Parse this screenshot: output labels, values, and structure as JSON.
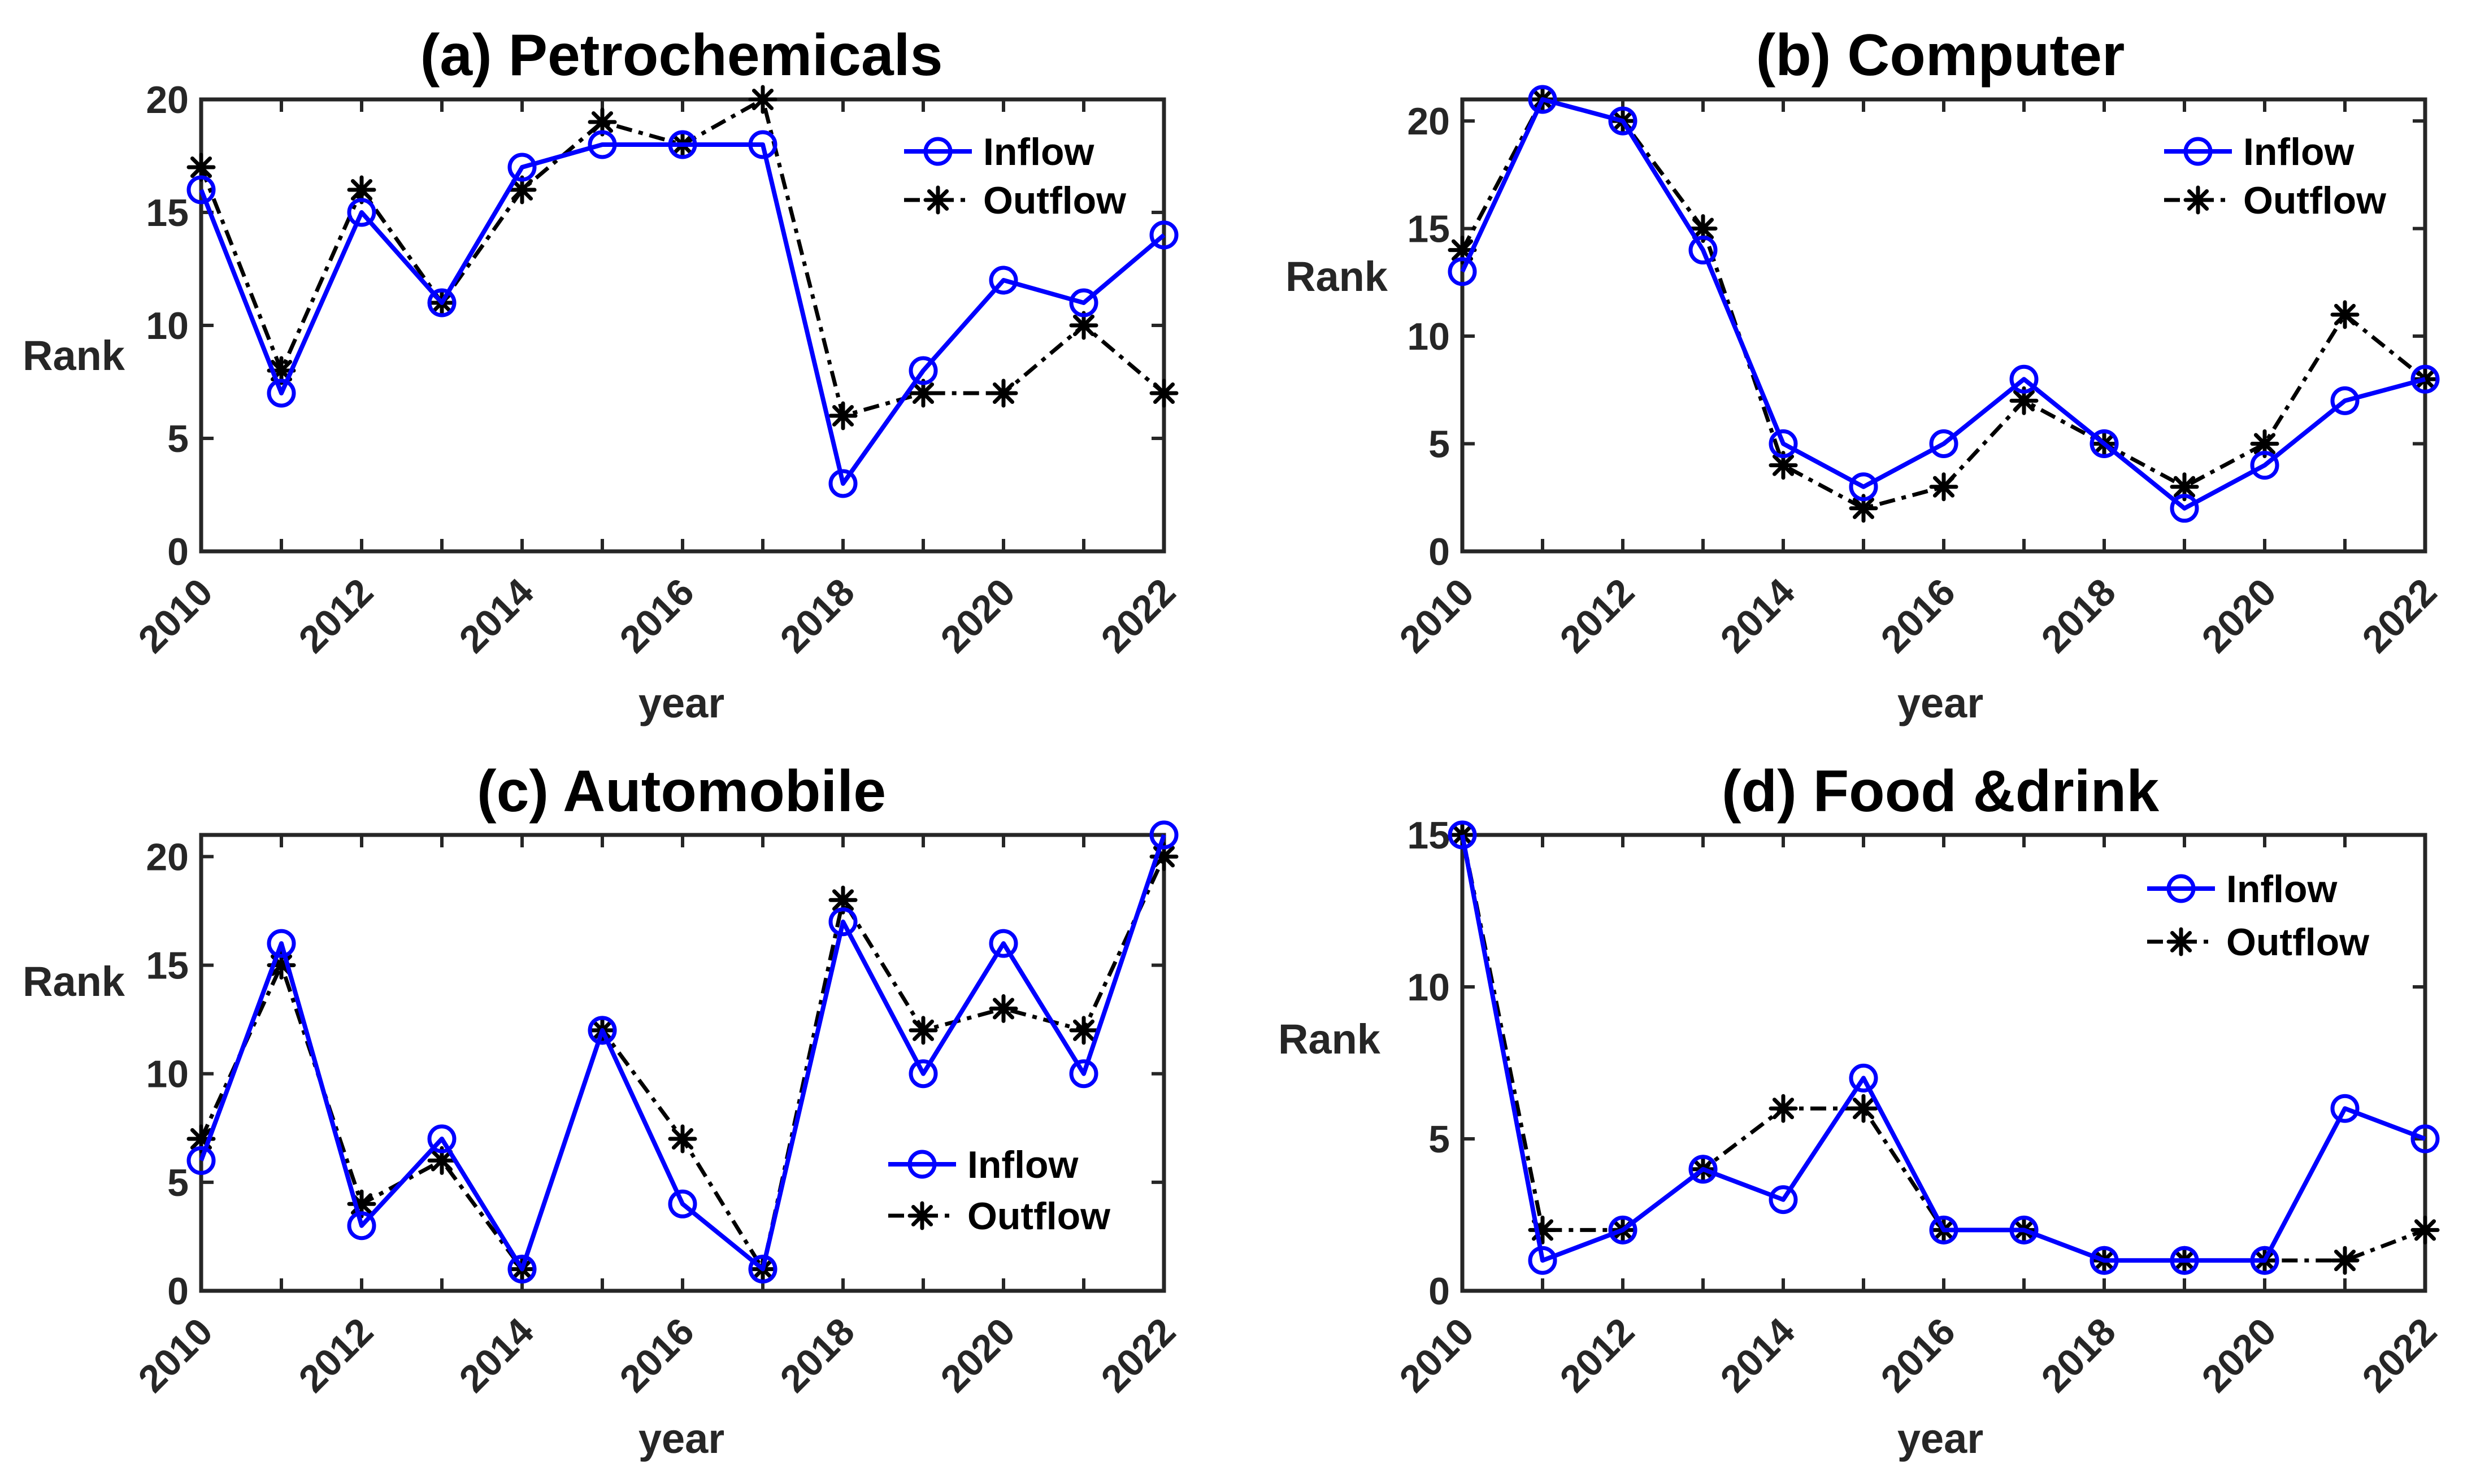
{
  "chart_data": [
    {
      "type": "line",
      "title": "(a) Petrochemicals",
      "xlabel": "year",
      "ylabel": "Rank",
      "x": [
        2010,
        2011,
        2012,
        2013,
        2014,
        2015,
        2016,
        2017,
        2018,
        2019,
        2020,
        2021,
        2022
      ],
      "xticks": [
        "2010",
        "2012",
        "2014",
        "2016",
        "2018",
        "2020",
        "2022"
      ],
      "yticks": [
        0,
        5,
        10,
        15,
        20
      ],
      "ylim": [
        0,
        20
      ],
      "legend": "top-right",
      "series": [
        {
          "name": "Inflow",
          "color": "#0000ff",
          "marker": "circle",
          "values": [
            16,
            7,
            15,
            11,
            17,
            18,
            18,
            18,
            3,
            8,
            12,
            11,
            14
          ]
        },
        {
          "name": "Outflow",
          "color": "#000000",
          "marker": "asterisk",
          "values": [
            17,
            8,
            16,
            11,
            16,
            19,
            18,
            20,
            6,
            7,
            7,
            10,
            7
          ]
        }
      ]
    },
    {
      "type": "line",
      "title": "(b) Computer",
      "xlabel": "year",
      "ylabel": "Rank",
      "x": [
        2010,
        2011,
        2012,
        2013,
        2014,
        2015,
        2016,
        2017,
        2018,
        2019,
        2020,
        2021,
        2022
      ],
      "xticks": [
        "2010",
        "2012",
        "2014",
        "2016",
        "2018",
        "2020",
        "2022"
      ],
      "yticks": [
        0,
        5,
        10,
        15,
        20
      ],
      "ylim": [
        0,
        21
      ],
      "legend": "top-right",
      "series": [
        {
          "name": "Inflow",
          "color": "#0000ff",
          "marker": "circle",
          "values": [
            13,
            21,
            20,
            14,
            5,
            3,
            5,
            8,
            5,
            2,
            4,
            7,
            8
          ]
        },
        {
          "name": "Outflow",
          "color": "#000000",
          "marker": "asterisk",
          "values": [
            14,
            21,
            20,
            15,
            4,
            2,
            3,
            7,
            5,
            3,
            5,
            11,
            8
          ]
        }
      ]
    },
    {
      "type": "line",
      "title": "(c) Automobile",
      "xlabel": "year",
      "ylabel": "Rank",
      "x": [
        2010,
        2011,
        2012,
        2013,
        2014,
        2015,
        2016,
        2017,
        2018,
        2019,
        2020,
        2021,
        2022
      ],
      "xticks": [
        "2010",
        "2012",
        "2014",
        "2016",
        "2018",
        "2020",
        "2022"
      ],
      "yticks": [
        0,
        5,
        10,
        15,
        20
      ],
      "ylim": [
        0,
        21
      ],
      "legend": "lower-right",
      "series": [
        {
          "name": "Inflow",
          "color": "#0000ff",
          "marker": "circle",
          "values": [
            6,
            16,
            3,
            7,
            1,
            12,
            4,
            1,
            17,
            10,
            16,
            10,
            21
          ]
        },
        {
          "name": "Outflow",
          "color": "#000000",
          "marker": "asterisk",
          "values": [
            7,
            15,
            4,
            6,
            1,
            12,
            7,
            1,
            18,
            12,
            13,
            12,
            20
          ]
        }
      ]
    },
    {
      "type": "line",
      "title": "(d) Food &drink",
      "xlabel": "year",
      "ylabel": "Rank",
      "x": [
        2010,
        2011,
        2012,
        2013,
        2014,
        2015,
        2016,
        2017,
        2018,
        2019,
        2020,
        2021,
        2022
      ],
      "xticks": [
        "2010",
        "2012",
        "2014",
        "2016",
        "2018",
        "2020",
        "2022"
      ],
      "yticks": [
        0,
        5,
        10,
        15
      ],
      "ylim": [
        0,
        15
      ],
      "legend": "top-right",
      "series": [
        {
          "name": "Inflow",
          "color": "#0000ff",
          "marker": "circle",
          "values": [
            15,
            1,
            2,
            4,
            3,
            7,
            2,
            2,
            1,
            1,
            1,
            6,
            5
          ]
        },
        {
          "name": "Outflow",
          "color": "#000000",
          "marker": "asterisk",
          "values": [
            15,
            2,
            2,
            4,
            6,
            6,
            2,
            2,
            1,
            1,
            1,
            1,
            2
          ]
        }
      ]
    }
  ]
}
